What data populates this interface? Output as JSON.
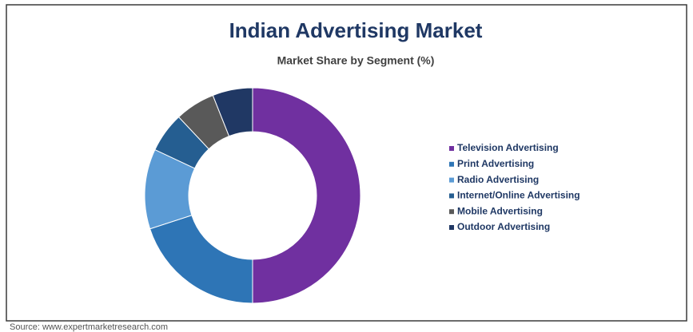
{
  "chart_data": {
    "type": "donut",
    "title": "Indian Advertising Market",
    "subtitle": "Market Share by Segment (%)",
    "categories": [
      "Television Advertising",
      "Print Advertising",
      "Radio Advertising",
      "Internet/Online Advertising",
      "Mobile Advertising",
      "Outdoor Advertising"
    ],
    "values": [
      50,
      20,
      12,
      6,
      6,
      6
    ],
    "colors": [
      "#7030a0",
      "#2e75b6",
      "#5b9bd5",
      "#255e91",
      "#595959",
      "#203864"
    ],
    "legend": "right",
    "source": "Source: www.expertmarketresearch.com"
  }
}
